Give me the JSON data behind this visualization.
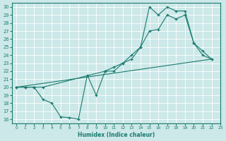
{
  "xlabel": "Humidex (Indice chaleur)",
  "xlim": [
    -0.5,
    23
  ],
  "ylim": [
    15.5,
    30.5
  ],
  "yticks": [
    16,
    17,
    18,
    19,
    20,
    21,
    22,
    23,
    24,
    25,
    26,
    27,
    28,
    29,
    30
  ],
  "xticks": [
    0,
    1,
    2,
    3,
    4,
    5,
    6,
    7,
    8,
    9,
    10,
    11,
    12,
    13,
    14,
    15,
    16,
    17,
    18,
    19,
    20,
    21,
    22,
    23
  ],
  "color": "#1a7a6e",
  "bg_color": "#cce8e8",
  "grid_color": "#ffffff",
  "line1_x": [
    0,
    1,
    2,
    3,
    4,
    5,
    6,
    7,
    8,
    9,
    10,
    11,
    12,
    13,
    14,
    15,
    16,
    17,
    18,
    19,
    20,
    21,
    22
  ],
  "line1_y": [
    20,
    20,
    20,
    18.5,
    18,
    16.3,
    16.2,
    16,
    21.5,
    19,
    22,
    22,
    23,
    24,
    25,
    30,
    29,
    30,
    29.5,
    29.5,
    25.5,
    24.5,
    23.5
  ],
  "line2_x": [
    0,
    1,
    2,
    3,
    10,
    11,
    12,
    13,
    14,
    15,
    16,
    17,
    18,
    19,
    20,
    21,
    22
  ],
  "line2_y": [
    20,
    20,
    20,
    20,
    22,
    22.5,
    23,
    23.5,
    25,
    27,
    27.2,
    29,
    28.5,
    29,
    25.5,
    24,
    23.5
  ],
  "line3_x": [
    0,
    22
  ],
  "line3_y": [
    20,
    23.5
  ]
}
